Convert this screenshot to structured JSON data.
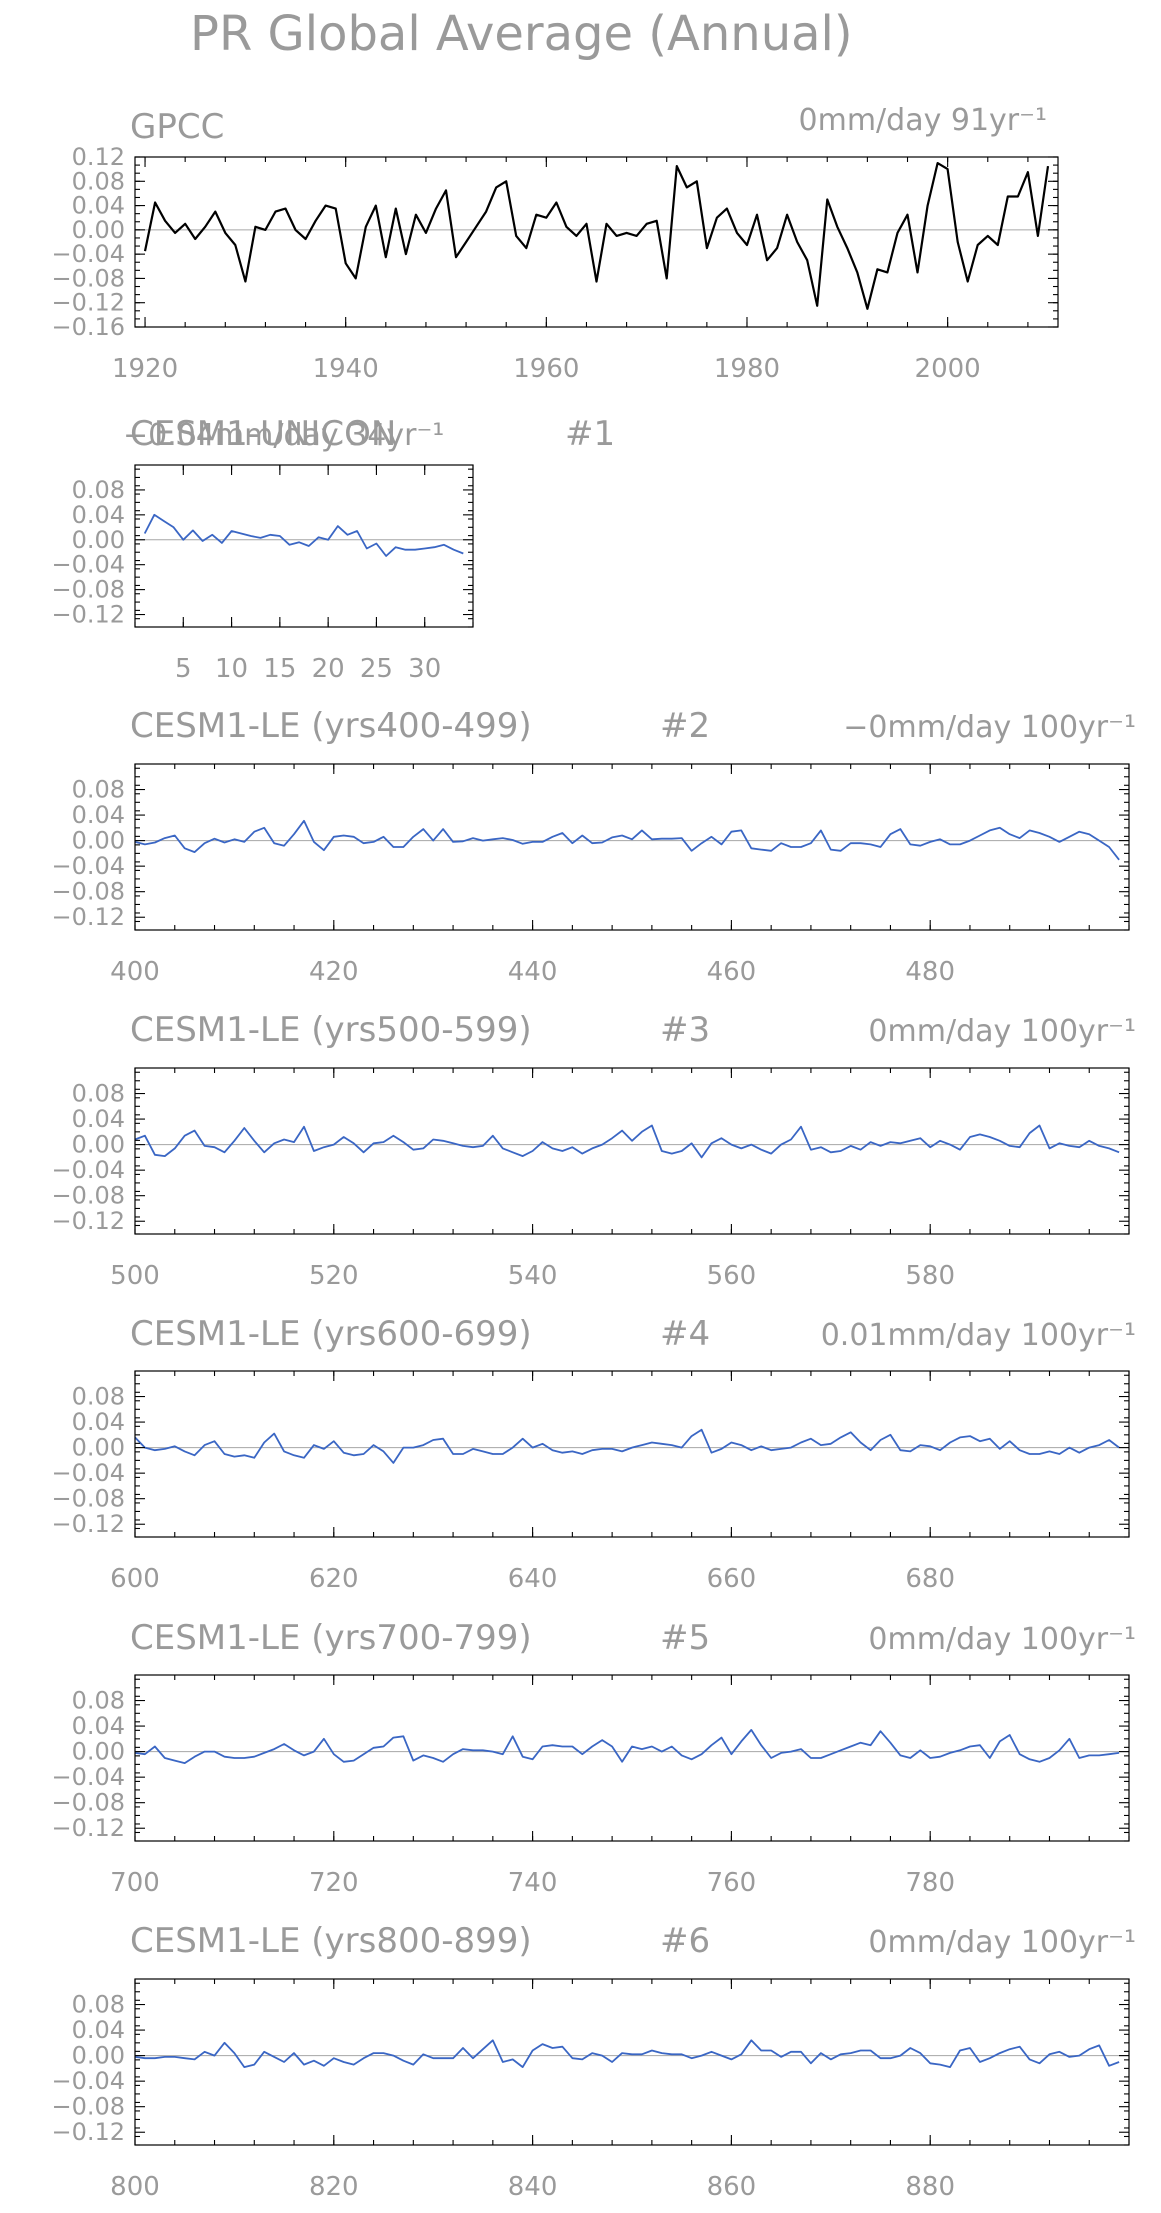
{
  "page_title": "PR Global Average (Annual)",
  "chart_data": [
    {
      "type": "line",
      "title": "GPCC",
      "trend": "0mm/day 91yr⁻¹",
      "line_color": "#000000",
      "xlim": [
        1919,
        2011
      ],
      "ylim": [
        -0.16,
        0.12
      ],
      "yticks": [
        0.12,
        0.08,
        0.04,
        0.0,
        -0.04,
        -0.08,
        -0.12,
        -0.16
      ],
      "ytick_labels": [
        "0.12",
        "0.08",
        "0.04",
        "0.00",
        "−0.04",
        "−0.08",
        "−0.12",
        "−0.16"
      ],
      "xticks": [
        1920,
        1940,
        1960,
        1980,
        2000
      ],
      "xtick_labels": [
        "1920",
        "1940",
        "1960",
        "1980",
        "2000"
      ],
      "x_start": 1920,
      "values": [
        -0.035,
        0.045,
        0.015,
        -0.005,
        0.01,
        -0.015,
        0.005,
        0.03,
        -0.005,
        -0.025,
        -0.085,
        0.005,
        0.0,
        0.03,
        0.035,
        0.0,
        -0.015,
        0.015,
        0.04,
        0.035,
        -0.055,
        -0.08,
        0.005,
        0.04,
        -0.045,
        0.035,
        -0.04,
        0.025,
        -0.005,
        0.035,
        0.065,
        -0.045,
        -0.02,
        0.005,
        0.03,
        0.07,
        0.08,
        -0.01,
        -0.03,
        0.025,
        0.02,
        0.045,
        0.005,
        -0.01,
        0.01,
        -0.085,
        0.01,
        -0.01,
        -0.005,
        -0.01,
        0.01,
        0.015,
        -0.08,
        0.105,
        0.07,
        0.08,
        -0.03,
        0.02,
        0.035,
        -0.005,
        -0.025,
        0.025,
        -0.05,
        -0.03,
        0.025,
        -0.02,
        -0.05,
        -0.125,
        0.05,
        0.005,
        -0.03,
        -0.07,
        -0.13,
        -0.065,
        -0.07,
        -0.005,
        0.025,
        -0.07,
        0.04,
        0.11,
        0.1,
        -0.02,
        -0.085,
        -0.025,
        -0.01,
        -0.025,
        0.055,
        0.055,
        0.095,
        -0.01,
        0.105
      ]
    },
    {
      "type": "line",
      "title": "CESM1-UNICON",
      "trend": "−0.04mm/day 34yr⁻¹",
      "run_label": "#1",
      "line_color": "#3a66c4",
      "xlim": [
        0,
        35
      ],
      "ylim": [
        -0.14,
        0.12
      ],
      "yticks": [
        0.08,
        0.04,
        0.0,
        -0.04,
        -0.08,
        -0.12
      ],
      "ytick_labels": [
        "0.08",
        "0.04",
        "0.00",
        "−0.04",
        "−0.08",
        "−0.12"
      ],
      "xticks": [
        5,
        10,
        15,
        20,
        25,
        30
      ],
      "xtick_labels": [
        "5",
        "10",
        "15",
        "20",
        "25",
        "30"
      ],
      "x_start": 1,
      "values": [
        0.01,
        0.04,
        0.03,
        0.02,
        0.0,
        0.015,
        -0.002,
        0.008,
        -0.005,
        0.014,
        0.01,
        0.006,
        0.003,
        0.008,
        0.006,
        -0.008,
        -0.004,
        -0.01,
        0.004,
        0.0,
        0.022,
        0.008,
        0.014,
        -0.014,
        -0.006,
        -0.026,
        -0.012,
        -0.016,
        -0.016,
        -0.014,
        -0.012,
        -0.008,
        -0.016,
        -0.022
      ]
    },
    {
      "type": "line",
      "title": "CESM1-LE (yrs400-499)",
      "trend": "−0mm/day 100yr⁻¹",
      "run_label": "#2",
      "line_color": "#3a66c4",
      "xlim": [
        400,
        500
      ],
      "ylim": [
        -0.14,
        0.12
      ],
      "yticks": [
        0.08,
        0.04,
        0.0,
        -0.04,
        -0.08,
        -0.12
      ],
      "ytick_labels": [
        "0.08",
        "0.04",
        "0.00",
        "−0.04",
        "−0.08",
        "−0.12"
      ],
      "xticks": [
        400,
        420,
        440,
        460,
        480
      ],
      "xtick_labels": [
        "400",
        "420",
        "440",
        "460",
        "480"
      ],
      "x_start": 400,
      "values": [
        -0.002,
        -0.006,
        -0.003,
        0.004,
        0.008,
        -0.012,
        -0.018,
        -0.004,
        0.003,
        -0.003,
        0.002,
        -0.002,
        0.014,
        0.02,
        -0.004,
        -0.008,
        0.01,
        0.031,
        -0.002,
        -0.015,
        0.006,
        0.008,
        0.006,
        -0.004,
        -0.002,
        0.006,
        -0.01,
        -0.01,
        0.006,
        0.018,
        0.0,
        0.018,
        -0.002,
        -0.001,
        0.004,
        0.0,
        0.002,
        0.004,
        0.001,
        -0.005,
        -0.002,
        -0.002,
        0.006,
        0.012,
        -0.004,
        0.008,
        -0.004,
        -0.003,
        0.005,
        0.008,
        0.002,
        0.016,
        0.002,
        0.003,
        0.003,
        0.004,
        -0.016,
        -0.004,
        0.006,
        -0.006,
        0.014,
        0.016,
        -0.012,
        -0.014,
        -0.016,
        -0.004,
        -0.01,
        -0.01,
        -0.004,
        0.016,
        -0.014,
        -0.016,
        -0.004,
        -0.004,
        -0.006,
        -0.01,
        0.01,
        0.018,
        -0.006,
        -0.008,
        -0.002,
        0.002,
        -0.006,
        -0.006,
        0.0,
        0.008,
        0.016,
        0.02,
        0.01,
        0.004,
        0.016,
        0.012,
        0.006,
        -0.002,
        0.006,
        0.014,
        0.01,
        0.0,
        -0.01,
        -0.03
      ]
    },
    {
      "type": "line",
      "title": "CESM1-LE (yrs500-599)",
      "trend": "0mm/day 100yr⁻¹",
      "run_label": "#3",
      "line_color": "#3a66c4",
      "xlim": [
        500,
        600
      ],
      "ylim": [
        -0.14,
        0.12
      ],
      "yticks": [
        0.08,
        0.04,
        0.0,
        -0.04,
        -0.08,
        -0.12
      ],
      "ytick_labels": [
        "0.08",
        "0.04",
        "0.00",
        "−0.04",
        "−0.08",
        "−0.12"
      ],
      "xticks": [
        500,
        520,
        540,
        560,
        580
      ],
      "xtick_labels": [
        "500",
        "520",
        "540",
        "560",
        "580"
      ],
      "x_start": 500,
      "values": [
        0.008,
        0.014,
        -0.016,
        -0.018,
        -0.006,
        0.014,
        0.022,
        -0.002,
        -0.004,
        -0.012,
        0.006,
        0.026,
        0.006,
        -0.012,
        0.002,
        0.008,
        0.004,
        0.028,
        -0.01,
        -0.004,
        0.0,
        0.012,
        0.002,
        -0.012,
        0.002,
        0.004,
        0.014,
        0.004,
        -0.008,
        -0.006,
        0.008,
        0.006,
        0.002,
        -0.002,
        -0.004,
        -0.002,
        0.014,
        -0.006,
        -0.012,
        -0.018,
        -0.01,
        0.004,
        -0.006,
        -0.01,
        -0.004,
        -0.014,
        -0.006,
        0.0,
        0.01,
        0.022,
        0.006,
        0.02,
        0.03,
        -0.01,
        -0.014,
        -0.01,
        0.002,
        -0.02,
        0.002,
        0.01,
        0.0,
        -0.006,
        0.0,
        -0.008,
        -0.014,
        0.0,
        0.008,
        0.028,
        -0.008,
        -0.004,
        -0.012,
        -0.01,
        -0.002,
        -0.008,
        0.004,
        -0.002,
        0.004,
        0.002,
        0.006,
        0.01,
        -0.004,
        0.006,
        0.0,
        -0.008,
        0.012,
        0.016,
        0.012,
        0.006,
        -0.002,
        -0.004,
        0.018,
        0.03,
        -0.006,
        0.002,
        -0.002,
        -0.004,
        0.006,
        -0.002,
        -0.006,
        -0.012
      ]
    },
    {
      "type": "line",
      "title": "CESM1-LE (yrs600-699)",
      "trend": "0.01mm/day 100yr⁻¹",
      "run_label": "#4",
      "line_color": "#3a66c4",
      "xlim": [
        600,
        700
      ],
      "ylim": [
        -0.14,
        0.12
      ],
      "yticks": [
        0.08,
        0.04,
        0.0,
        -0.04,
        -0.08,
        -0.12
      ],
      "ytick_labels": [
        "0.08",
        "0.04",
        "0.00",
        "−0.04",
        "−0.08",
        "−0.12"
      ],
      "xticks": [
        600,
        620,
        640,
        660,
        680
      ],
      "xtick_labels": [
        "600",
        "620",
        "640",
        "660",
        "680"
      ],
      "x_start": 600,
      "values": [
        0.016,
        0.0,
        -0.004,
        -0.002,
        0.002,
        -0.006,
        -0.012,
        0.004,
        0.01,
        -0.01,
        -0.014,
        -0.012,
        -0.016,
        0.008,
        0.022,
        -0.006,
        -0.012,
        -0.016,
        0.004,
        -0.002,
        0.01,
        -0.008,
        -0.012,
        -0.01,
        0.004,
        -0.006,
        -0.024,
        0.0,
        0.0,
        0.004,
        0.012,
        0.014,
        -0.01,
        -0.01,
        -0.002,
        -0.006,
        -0.01,
        -0.01,
        0.0,
        0.014,
        0.0,
        0.006,
        -0.004,
        -0.008,
        -0.006,
        -0.01,
        -0.004,
        -0.002,
        -0.002,
        -0.006,
        0.0,
        0.004,
        0.008,
        0.006,
        0.004,
        0.0,
        0.018,
        0.028,
        -0.008,
        -0.002,
        0.008,
        0.004,
        -0.004,
        0.002,
        -0.004,
        -0.002,
        0.0,
        0.008,
        0.014,
        0.004,
        0.006,
        0.016,
        0.024,
        0.008,
        -0.004,
        0.012,
        0.02,
        -0.004,
        -0.006,
        0.004,
        0.002,
        -0.004,
        0.008,
        0.016,
        0.018,
        0.01,
        0.014,
        -0.002,
        0.01,
        -0.004,
        -0.01,
        -0.01,
        -0.006,
        -0.01,
        0.0,
        -0.008,
        0.0,
        0.004,
        0.012,
        0.0
      ]
    },
    {
      "type": "line",
      "title": "CESM1-LE (yrs700-799)",
      "trend": "0mm/day 100yr⁻¹",
      "run_label": "#5",
      "line_color": "#3a66c4",
      "xlim": [
        700,
        800
      ],
      "ylim": [
        -0.14,
        0.12
      ],
      "yticks": [
        0.08,
        0.04,
        0.0,
        -0.04,
        -0.08,
        -0.12
      ],
      "ytick_labels": [
        "0.08",
        "0.04",
        "0.00",
        "−0.04",
        "−0.08",
        "−0.12"
      ],
      "xticks": [
        700,
        720,
        740,
        760,
        780
      ],
      "xtick_labels": [
        "700",
        "720",
        "740",
        "760",
        "780"
      ],
      "x_start": 700,
      "values": [
        -0.002,
        -0.004,
        0.008,
        -0.01,
        -0.014,
        -0.018,
        -0.008,
        0.0,
        0.0,
        -0.008,
        -0.01,
        -0.01,
        -0.008,
        -0.002,
        0.004,
        0.012,
        0.002,
        -0.006,
        0.0,
        0.02,
        -0.004,
        -0.016,
        -0.014,
        -0.004,
        0.006,
        0.008,
        0.022,
        0.024,
        -0.014,
        -0.006,
        -0.01,
        -0.016,
        -0.004,
        0.004,
        0.002,
        0.002,
        0.0,
        -0.004,
        0.024,
        -0.008,
        -0.012,
        0.008,
        0.01,
        0.008,
        0.008,
        -0.004,
        0.008,
        0.018,
        0.008,
        -0.016,
        0.008,
        0.004,
        0.008,
        0.0,
        0.008,
        -0.006,
        -0.012,
        -0.004,
        0.01,
        0.022,
        -0.004,
        0.016,
        0.034,
        0.01,
        -0.01,
        -0.002,
        0.0,
        0.004,
        -0.01,
        -0.01,
        -0.004,
        0.002,
        0.008,
        0.014,
        0.01,
        0.032,
        0.014,
        -0.006,
        -0.01,
        0.002,
        -0.01,
        -0.008,
        -0.002,
        0.002,
        0.008,
        0.01,
        -0.01,
        0.016,
        0.026,
        -0.004,
        -0.012,
        -0.016,
        -0.01,
        0.002,
        0.02,
        -0.01,
        -0.006,
        -0.006,
        -0.004,
        -0.002
      ]
    },
    {
      "type": "line",
      "title": "CESM1-LE (yrs800-899)",
      "trend": "0mm/day 100yr⁻¹",
      "run_label": "#6",
      "line_color": "#3a66c4",
      "xlim": [
        800,
        900
      ],
      "ylim": [
        -0.14,
        0.12
      ],
      "yticks": [
        0.08,
        0.04,
        0.0,
        -0.04,
        -0.08,
        -0.12
      ],
      "ytick_labels": [
        "0.08",
        "0.04",
        "0.00",
        "−0.04",
        "−0.08",
        "−0.12"
      ],
      "xticks": [
        800,
        820,
        840,
        860,
        880
      ],
      "xtick_labels": [
        "800",
        "820",
        "840",
        "860",
        "880"
      ],
      "x_start": 800,
      "values": [
        -0.002,
        -0.004,
        -0.004,
        -0.002,
        -0.002,
        -0.004,
        -0.006,
        0.006,
        0.0,
        0.02,
        0.004,
        -0.018,
        -0.014,
        0.006,
        -0.002,
        -0.01,
        0.004,
        -0.014,
        -0.008,
        -0.016,
        -0.004,
        -0.01,
        -0.014,
        -0.004,
        0.004,
        0.004,
        0.0,
        -0.008,
        -0.014,
        0.002,
        -0.004,
        -0.004,
        -0.004,
        0.012,
        -0.004,
        0.01,
        0.024,
        -0.01,
        -0.006,
        -0.018,
        0.008,
        0.018,
        0.012,
        0.014,
        -0.004,
        -0.006,
        0.004,
        0.0,
        -0.01,
        0.004,
        0.002,
        0.002,
        0.008,
        0.004,
        0.002,
        0.002,
        -0.004,
        0.0,
        0.006,
        0.0,
        -0.006,
        0.002,
        0.024,
        0.008,
        0.008,
        -0.002,
        0.006,
        0.006,
        -0.012,
        0.004,
        -0.006,
        0.002,
        0.004,
        0.008,
        0.008,
        -0.004,
        -0.004,
        0.0,
        0.012,
        0.004,
        -0.012,
        -0.014,
        -0.018,
        0.008,
        0.012,
        -0.01,
        -0.004,
        0.004,
        0.01,
        0.014,
        -0.006,
        -0.012,
        0.002,
        0.006,
        -0.002,
        0.0,
        0.01,
        0.016,
        -0.016,
        -0.01
      ]
    }
  ]
}
